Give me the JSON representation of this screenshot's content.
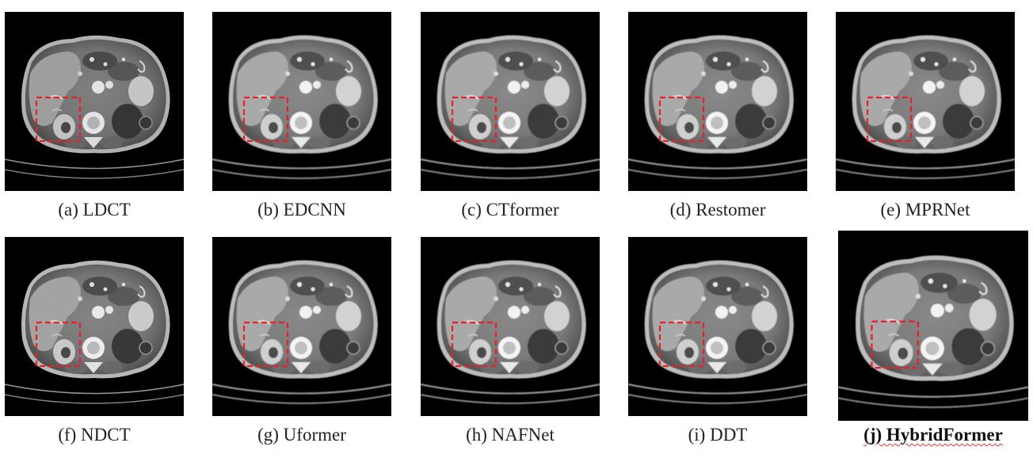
{
  "figure": {
    "panels": [
      {
        "id": "a",
        "label": "(a) LDCT",
        "noise": "high"
      },
      {
        "id": "b",
        "label": "(b) EDCNN",
        "noise": "low"
      },
      {
        "id": "c",
        "label": "(c) CTformer",
        "noise": "low"
      },
      {
        "id": "d",
        "label": "(d) Restomer",
        "noise": "low"
      },
      {
        "id": "e",
        "label": "(e) MPRNet",
        "noise": "low"
      },
      {
        "id": "f",
        "label": "(f) NDCT",
        "noise": "medium"
      },
      {
        "id": "g",
        "label": "(g) Uformer",
        "noise": "low"
      },
      {
        "id": "h",
        "label": "(h) NAFNet",
        "noise": "low"
      },
      {
        "id": "i",
        "label": "(i) DDT",
        "noise": "low"
      },
      {
        "id": "j",
        "label": "(j) HybridFormer",
        "noise": "low",
        "emphasis": "bold"
      }
    ],
    "roi_color": "#e8202a",
    "background_color": "#000000"
  }
}
